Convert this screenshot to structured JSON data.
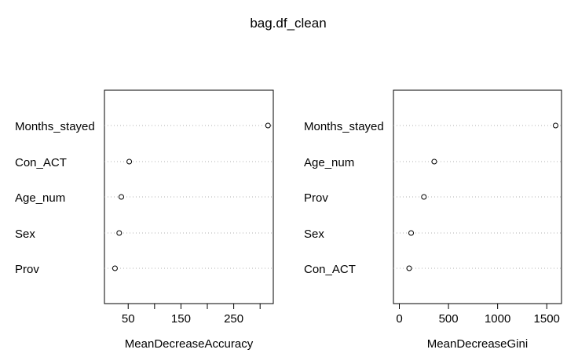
{
  "title": "bag.df_clean",
  "chart_data": [
    {
      "type": "dotchart",
      "xlabel": "MeanDecreaseAccuracy",
      "categories": [
        "Months_stayed",
        "Con_ACT",
        "Age_num",
        "Sex",
        "Prov"
      ],
      "values": [
        315,
        52,
        37,
        33,
        25
      ],
      "xlim": [
        5,
        325
      ],
      "xticks": [
        50,
        100,
        150,
        200,
        250,
        300
      ],
      "xtick_labels": [
        "50",
        "",
        "150",
        "",
        "250",
        ""
      ],
      "grid": "dotted horizontal"
    },
    {
      "type": "dotchart",
      "xlabel": "MeanDecreaseGini",
      "categories": [
        "Months_stayed",
        "Age_num",
        "Prov",
        "Sex",
        "Con_ACT"
      ],
      "values": [
        1590,
        355,
        250,
        120,
        100
      ],
      "xlim": [
        -60,
        1650
      ],
      "xticks": [
        0,
        500,
        1000,
        1500
      ],
      "xtick_labels": [
        "0",
        "500",
        "1000",
        "1500"
      ],
      "grid": "dotted horizontal"
    }
  ]
}
